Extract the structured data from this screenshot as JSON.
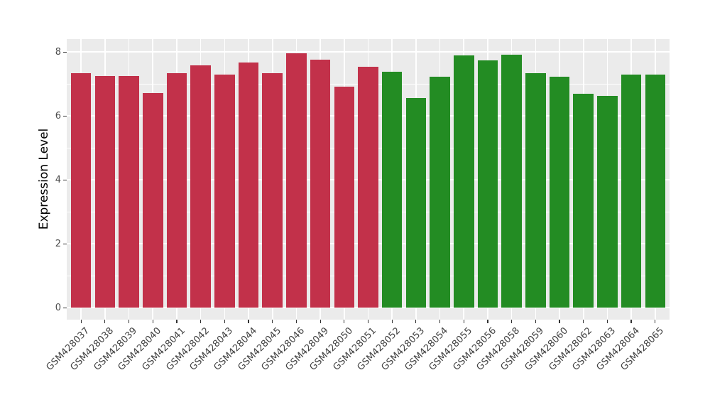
{
  "chart_data": {
    "type": "bar",
    "title": "",
    "xlabel": "",
    "ylabel": "Expression Level",
    "ylim": [
      0,
      8.4
    ],
    "yticks": [
      0,
      2,
      4,
      6,
      8
    ],
    "ytick_labels": [
      "0",
      "2",
      "4",
      "6",
      "8"
    ],
    "minor_gridlines": [
      1,
      3,
      5,
      7
    ],
    "grid": "on",
    "legend_position": "none",
    "categories": [
      "GSM428037",
      "GSM428038",
      "GSM428039",
      "GSM428040",
      "GSM428041",
      "GSM428042",
      "GSM428043",
      "GSM428044",
      "GSM428045",
      "GSM428046",
      "GSM428049",
      "GSM428050",
      "GSM428051",
      "GSM428052",
      "GSM428053",
      "GSM428054",
      "GSM428055",
      "GSM428056",
      "GSM428058",
      "GSM428059",
      "GSM428060",
      "GSM428062",
      "GSM428063",
      "GSM428064",
      "GSM428065"
    ],
    "values": [
      7.33,
      7.25,
      7.25,
      6.72,
      7.34,
      7.58,
      7.3,
      7.67,
      7.33,
      7.95,
      7.76,
      6.92,
      7.53,
      7.38,
      6.56,
      7.22,
      7.88,
      7.74,
      7.92,
      7.34,
      7.22,
      6.7,
      6.62,
      7.3,
      7.3
    ],
    "bar_groups": [
      "red",
      "red",
      "red",
      "red",
      "red",
      "red",
      "red",
      "red",
      "red",
      "red",
      "red",
      "red",
      "red",
      "green",
      "green",
      "green",
      "green",
      "green",
      "green",
      "green",
      "green",
      "green",
      "green",
      "green",
      "green"
    ],
    "group_colors": {
      "red": "#C2314A",
      "green": "#238C23"
    },
    "panel_background": "#EBEBEB",
    "gridline_color": "#FFFFFF",
    "axis_text_color": "#4D4D4D",
    "axis_title_color": "#000000"
  }
}
